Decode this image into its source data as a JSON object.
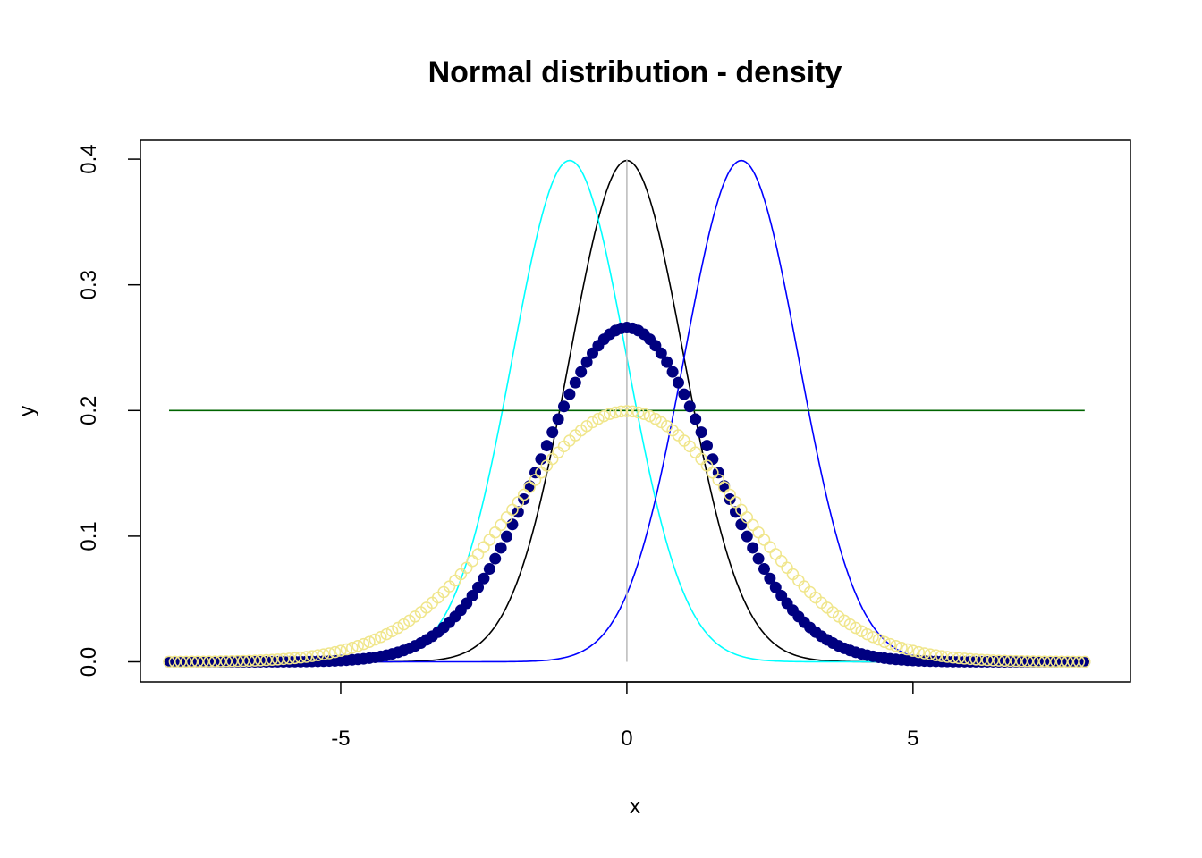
{
  "chart_data": {
    "type": "line",
    "title": "Normal distribution - density",
    "xlabel": "x",
    "ylabel": "y",
    "xlim": [
      -8.5,
      8.8
    ],
    "ylim": [
      -0.016,
      0.415
    ],
    "xticks": [
      -5,
      0,
      5
    ],
    "xtick_labels": [
      "-5",
      "0",
      "5"
    ],
    "yticks": [
      0.0,
      0.1,
      0.2,
      0.3,
      0.4
    ],
    "ytick_labels": [
      "0.0",
      "0.1",
      "0.2",
      "0.3",
      "0.4"
    ],
    "grid": false,
    "x_range": [
      -8,
      8
    ],
    "series": [
      {
        "style": "line",
        "color": "#000000",
        "distribution": "normal",
        "mean": 0,
        "sd": 1
      },
      {
        "style": "line",
        "color": "#00FFFF",
        "distribution": "normal",
        "mean": -1,
        "sd": 1
      },
      {
        "style": "line",
        "color": "#0000FF",
        "distribution": "normal",
        "mean": 2,
        "sd": 1
      },
      {
        "style": "hline",
        "color": "#006400",
        "y": 0.2,
        "x": [
          -8,
          8
        ]
      },
      {
        "style": "vline",
        "color": "#BEBEBE",
        "x": 0,
        "y": [
          0,
          0.4
        ]
      },
      {
        "style": "filled-points",
        "color": "#000080",
        "distribution": "normal",
        "mean": 0,
        "sd": 1.5,
        "n_points": 161
      },
      {
        "style": "open-points",
        "color": "#F0E68C",
        "distribution": "normal",
        "mean": 0,
        "sd": 2,
        "n_points": 161
      }
    ]
  }
}
